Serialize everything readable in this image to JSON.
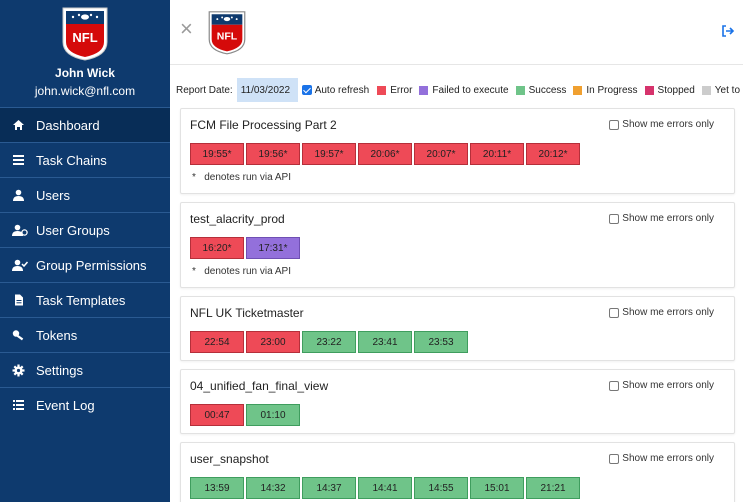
{
  "user": {
    "name": "John Wick",
    "email": "john.wick@nfl.com"
  },
  "logo": {
    "text": "NFL"
  },
  "nav": [
    {
      "label": "Dashboard",
      "icon": "home-icon",
      "active": true
    },
    {
      "label": "Task Chains",
      "icon": "list-icon",
      "active": false
    },
    {
      "label": "Users",
      "icon": "user-icon",
      "active": false
    },
    {
      "label": "User Groups",
      "icon": "user-group-icon",
      "active": false
    },
    {
      "label": "Group Permissions",
      "icon": "user-check-icon",
      "active": false
    },
    {
      "label": "Task Templates",
      "icon": "document-icon",
      "active": false
    },
    {
      "label": "Tokens",
      "icon": "key-icon",
      "active": false
    },
    {
      "label": "Settings",
      "icon": "gear-icon",
      "active": false
    },
    {
      "label": "Event Log",
      "icon": "event-list-icon",
      "active": false
    }
  ],
  "topbar": {
    "close_icon": "×"
  },
  "filters": {
    "report_date_label": "Report Date:",
    "report_date_value": "11/03/2022",
    "auto_refresh_label": "Auto refresh",
    "auto_refresh_checked": true
  },
  "legend": [
    {
      "label": "Error",
      "color": "#ee4a57"
    },
    {
      "label": "Failed to execute",
      "color": "#9370db"
    },
    {
      "label": "Success",
      "color": "#6fc489"
    },
    {
      "label": "In Progress",
      "color": "#f0a030"
    },
    {
      "label": "Stopped",
      "color": "#d6336c"
    },
    {
      "label": "Yet to start",
      "color": "#cccccc"
    }
  ],
  "show_errors_label": "Show me errors only",
  "api_note": "denotes run via API",
  "api_star": "*",
  "cards": [
    {
      "title": "FCM File Processing Part 2",
      "note": true,
      "runs": [
        {
          "time": "19:55",
          "status": "error",
          "api": " *"
        },
        {
          "time": "19:56",
          "status": "error",
          "api": " *"
        },
        {
          "time": "19:57",
          "status": "error",
          "api": " *"
        },
        {
          "time": "20:06",
          "status": "error",
          "api": " *"
        },
        {
          "time": "20:07",
          "status": "error",
          "api": " *"
        },
        {
          "time": "20:11",
          "status": "error",
          "api": " *"
        },
        {
          "time": "20:12",
          "status": "error",
          "api": " *"
        }
      ]
    },
    {
      "title": "test_alacrity_prod",
      "note": true,
      "runs": [
        {
          "time": "16:20",
          "status": "error",
          "api": " *"
        },
        {
          "time": "17:31",
          "status": "failed",
          "api": " *"
        }
      ]
    },
    {
      "title": "NFL UK Ticketmaster",
      "note": false,
      "runs": [
        {
          "time": "22:54",
          "status": "error",
          "api": ""
        },
        {
          "time": "23:00",
          "status": "error",
          "api": ""
        },
        {
          "time": "23:22",
          "status": "success",
          "api": ""
        },
        {
          "time": "23:41",
          "status": "success",
          "api": ""
        },
        {
          "time": "23:53",
          "status": "success",
          "api": ""
        }
      ]
    },
    {
      "title": "04_unified_fan_final_view",
      "note": false,
      "runs": [
        {
          "time": "00:47",
          "status": "error",
          "api": ""
        },
        {
          "time": "01:10",
          "status": "success",
          "api": ""
        }
      ]
    },
    {
      "title": "user_snapshot",
      "note": false,
      "runs": [
        {
          "time": "13:59",
          "status": "success",
          "api": ""
        },
        {
          "time": "14:32",
          "status": "success",
          "api": ""
        },
        {
          "time": "14:37",
          "status": "success",
          "api": ""
        },
        {
          "time": "14:41",
          "status": "success",
          "api": ""
        },
        {
          "time": "14:55",
          "status": "success",
          "api": ""
        },
        {
          "time": "15:01",
          "status": "success",
          "api": ""
        },
        {
          "time": "21:21",
          "status": "success",
          "api": ""
        }
      ]
    }
  ]
}
